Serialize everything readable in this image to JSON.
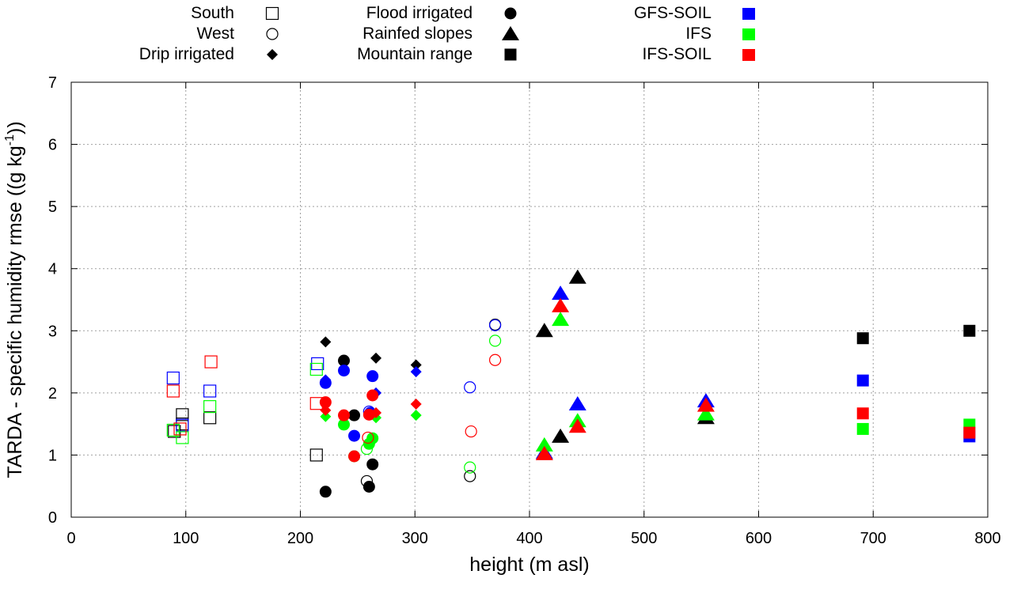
{
  "chart_data": {
    "type": "scatter",
    "title": "",
    "xlabel": "height (m asl)",
    "ylabel": "TARDA - specific humidity rmse ((g kg",
    "ylabel_superscript": "-1",
    "ylabel_tail": "))",
    "xlim": [
      0,
      800
    ],
    "ylim": [
      0,
      7
    ],
    "xticks": [
      0,
      100,
      200,
      300,
      400,
      500,
      600,
      700,
      800
    ],
    "yticks": [
      0,
      1,
      2,
      3,
      4,
      5,
      6,
      7
    ],
    "grid": true,
    "legend_position": "top, outside plot area",
    "legend": {
      "shapes": [
        {
          "label": "South",
          "marker": "open-square"
        },
        {
          "label": "West",
          "marker": "open-circle"
        },
        {
          "label": "Drip irrigated",
          "marker": "filled-diamond"
        },
        {
          "label": "Flood irrigated",
          "marker": "filled-circle"
        },
        {
          "label": "Rainfed slopes",
          "marker": "filled-triangle"
        },
        {
          "label": "Mountain range",
          "marker": "filled-square"
        }
      ],
      "models": [
        {
          "label": "GFS-SOIL",
          "color": "#0000ff"
        },
        {
          "label": "IFS",
          "color": "#00ff00"
        },
        {
          "label": "IFS-SOIL",
          "color": "#ff0000"
        }
      ]
    },
    "colors": {
      "TARDA": "#000000",
      "GFS-SOIL": "#0000ff",
      "IFS": "#00ff00",
      "IFS-SOIL": "#ff0000"
    },
    "series": [
      {
        "name": "South",
        "marker": "open-square",
        "points": [
          {
            "x": 90,
            "y": 1.38,
            "model": "TARDA"
          },
          {
            "x": 97,
            "y": 1.65,
            "model": "TARDA"
          },
          {
            "x": 97,
            "y": 1.5,
            "model": "TARDA"
          },
          {
            "x": 121,
            "y": 1.6,
            "model": "TARDA"
          },
          {
            "x": 214,
            "y": 1.0,
            "model": "TARDA"
          },
          {
            "x": 89,
            "y": 2.24,
            "model": "GFS-SOIL"
          },
          {
            "x": 97,
            "y": 1.48,
            "model": "GFS-SOIL"
          },
          {
            "x": 121,
            "y": 2.03,
            "model": "GFS-SOIL"
          },
          {
            "x": 215,
            "y": 2.47,
            "model": "GFS-SOIL"
          },
          {
            "x": 89,
            "y": 1.4,
            "model": "IFS"
          },
          {
            "x": 97,
            "y": 1.28,
            "model": "IFS"
          },
          {
            "x": 121,
            "y": 1.78,
            "model": "IFS"
          },
          {
            "x": 214,
            "y": 2.38,
            "model": "IFS"
          },
          {
            "x": 89,
            "y": 2.03,
            "model": "IFS-SOIL"
          },
          {
            "x": 95,
            "y": 1.42,
            "model": "IFS-SOIL"
          },
          {
            "x": 122,
            "y": 2.5,
            "model": "IFS-SOIL"
          },
          {
            "x": 214,
            "y": 1.83,
            "model": "IFS-SOIL"
          }
        ]
      },
      {
        "name": "West",
        "marker": "open-circle",
        "points": [
          {
            "x": 258,
            "y": 0.58,
            "model": "TARDA"
          },
          {
            "x": 348,
            "y": 0.66,
            "model": "TARDA"
          },
          {
            "x": 370,
            "y": 3.1,
            "model": "TARDA"
          },
          {
            "x": 260,
            "y": 1.7,
            "model": "GFS-SOIL"
          },
          {
            "x": 348,
            "y": 2.09,
            "model": "GFS-SOIL"
          },
          {
            "x": 370,
            "y": 3.09,
            "model": "GFS-SOIL"
          },
          {
            "x": 258,
            "y": 1.1,
            "model": "IFS"
          },
          {
            "x": 348,
            "y": 0.8,
            "model": "IFS"
          },
          {
            "x": 370,
            "y": 2.84,
            "model": "IFS"
          },
          {
            "x": 259,
            "y": 1.28,
            "model": "IFS-SOIL"
          },
          {
            "x": 349,
            "y": 1.38,
            "model": "IFS-SOIL"
          },
          {
            "x": 370,
            "y": 2.53,
            "model": "IFS-SOIL"
          }
        ]
      },
      {
        "name": "Drip irrigated",
        "marker": "filled-diamond",
        "points": [
          {
            "x": 222,
            "y": 2.82,
            "model": "TARDA"
          },
          {
            "x": 266,
            "y": 2.56,
            "model": "TARDA"
          },
          {
            "x": 301,
            "y": 2.45,
            "model": "TARDA"
          },
          {
            "x": 222,
            "y": 2.21,
            "model": "GFS-SOIL"
          },
          {
            "x": 266,
            "y": 2.0,
            "model": "GFS-SOIL"
          },
          {
            "x": 301,
            "y": 2.34,
            "model": "GFS-SOIL"
          },
          {
            "x": 222,
            "y": 1.62,
            "model": "IFS"
          },
          {
            "x": 266,
            "y": 1.6,
            "model": "IFS"
          },
          {
            "x": 301,
            "y": 1.64,
            "model": "IFS"
          },
          {
            "x": 222,
            "y": 1.72,
            "model": "IFS-SOIL"
          },
          {
            "x": 266,
            "y": 1.68,
            "model": "IFS-SOIL"
          },
          {
            "x": 301,
            "y": 1.82,
            "model": "IFS-SOIL"
          }
        ]
      },
      {
        "name": "Flood irrigated",
        "marker": "filled-circle",
        "points": [
          {
            "x": 222,
            "y": 0.41,
            "model": "TARDA"
          },
          {
            "x": 238,
            "y": 2.52,
            "model": "TARDA"
          },
          {
            "x": 247,
            "y": 1.64,
            "model": "TARDA"
          },
          {
            "x": 260,
            "y": 0.49,
            "model": "TARDA"
          },
          {
            "x": 263,
            "y": 0.85,
            "model": "TARDA"
          },
          {
            "x": 222,
            "y": 2.16,
            "model": "GFS-SOIL"
          },
          {
            "x": 238,
            "y": 2.36,
            "model": "GFS-SOIL"
          },
          {
            "x": 247,
            "y": 1.31,
            "model": "GFS-SOIL"
          },
          {
            "x": 261,
            "y": 1.68,
            "model": "GFS-SOIL"
          },
          {
            "x": 263,
            "y": 2.27,
            "model": "GFS-SOIL"
          },
          {
            "x": 238,
            "y": 1.49,
            "model": "IFS"
          },
          {
            "x": 247,
            "y": 0.98,
            "model": "IFS"
          },
          {
            "x": 260,
            "y": 1.18,
            "model": "IFS"
          },
          {
            "x": 263,
            "y": 1.27,
            "model": "IFS"
          },
          {
            "x": 222,
            "y": 1.85,
            "model": "IFS-SOIL"
          },
          {
            "x": 238,
            "y": 1.64,
            "model": "IFS-SOIL"
          },
          {
            "x": 247,
            "y": 0.98,
            "model": "IFS-SOIL"
          },
          {
            "x": 260,
            "y": 1.65,
            "model": "IFS-SOIL"
          },
          {
            "x": 263,
            "y": 1.96,
            "model": "IFS-SOIL"
          }
        ]
      },
      {
        "name": "Rainfed slopes",
        "marker": "filled-triangle",
        "points": [
          {
            "x": 413,
            "y": 3.0,
            "model": "TARDA"
          },
          {
            "x": 427,
            "y": 1.3,
            "model": "TARDA"
          },
          {
            "x": 442,
            "y": 3.86,
            "model": "TARDA"
          },
          {
            "x": 554,
            "y": 1.6,
            "model": "TARDA"
          },
          {
            "x": 413,
            "y": 1.04,
            "model": "GFS-SOIL"
          },
          {
            "x": 427,
            "y": 3.6,
            "model": "GFS-SOIL"
          },
          {
            "x": 442,
            "y": 1.82,
            "model": "GFS-SOIL"
          },
          {
            "x": 554,
            "y": 1.87,
            "model": "GFS-SOIL"
          },
          {
            "x": 413,
            "y": 1.16,
            "model": "IFS"
          },
          {
            "x": 427,
            "y": 3.18,
            "model": "IFS"
          },
          {
            "x": 442,
            "y": 1.55,
            "model": "IFS"
          },
          {
            "x": 554,
            "y": 1.66,
            "model": "IFS"
          },
          {
            "x": 413,
            "y": 1.02,
            "model": "IFS-SOIL"
          },
          {
            "x": 427,
            "y": 3.4,
            "model": "IFS-SOIL"
          },
          {
            "x": 442,
            "y": 1.46,
            "model": "IFS-SOIL"
          },
          {
            "x": 554,
            "y": 1.8,
            "model": "IFS-SOIL"
          }
        ]
      },
      {
        "name": "Mountain range",
        "marker": "filled-square",
        "points": [
          {
            "x": 691,
            "y": 2.88,
            "model": "TARDA"
          },
          {
            "x": 784,
            "y": 3.0,
            "model": "TARDA"
          },
          {
            "x": 691,
            "y": 2.2,
            "model": "GFS-SOIL"
          },
          {
            "x": 784,
            "y": 1.3,
            "model": "GFS-SOIL"
          },
          {
            "x": 691,
            "y": 1.42,
            "model": "IFS"
          },
          {
            "x": 784,
            "y": 1.49,
            "model": "IFS"
          },
          {
            "x": 691,
            "y": 1.67,
            "model": "IFS-SOIL"
          },
          {
            "x": 784,
            "y": 1.36,
            "model": "IFS-SOIL"
          }
        ]
      }
    ]
  }
}
